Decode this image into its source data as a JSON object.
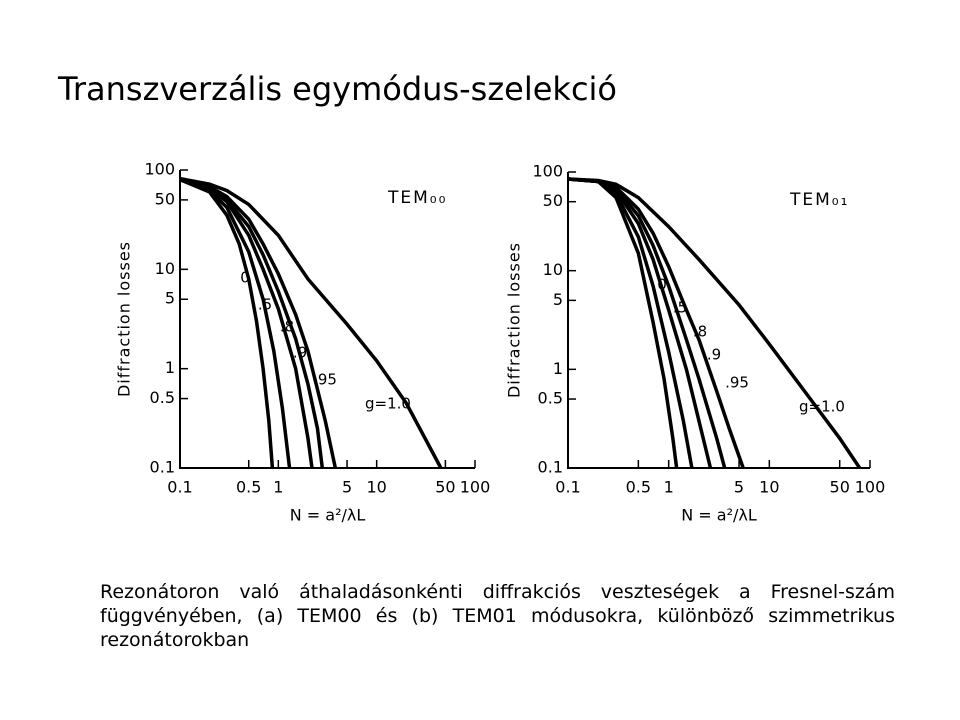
{
  "title": "Transzverzális egymódus-szelekció",
  "caption": "Rezonátoron való áthaladásonkénti diffrakciós veszteségek a Fresnel-szám függvényében, (a) TEM00 és (b) TEM01 módusokra, különböző szimmetrikus rezonátorokban",
  "chart_data": [
    {
      "type": "line",
      "annotation": "TEM₀₀",
      "xlabel": "N = a²/λL",
      "ylabel": "Diffraction losses",
      "xscale": "log",
      "yscale": "log",
      "xlim": [
        0.1,
        100
      ],
      "ylim": [
        0.1,
        100
      ],
      "xticks": [
        0.1,
        0.5,
        1,
        5,
        10,
        50,
        100
      ],
      "yticks": [
        0.1,
        0.5,
        1,
        5,
        10,
        50,
        100
      ],
      "series": [
        {
          "name": "0",
          "color": "#000000",
          "x": [
            0.1,
            0.2,
            0.3,
            0.4,
            0.5,
            0.6,
            0.7,
            0.8,
            0.87
          ],
          "values": [
            80,
            60,
            35,
            18,
            8,
            3,
            1,
            0.3,
            0.1
          ]
        },
        {
          "name": ".5",
          "color": "#000000",
          "x": [
            0.1,
            0.2,
            0.3,
            0.5,
            0.7,
            0.9,
            1.1,
            1.3
          ],
          "values": [
            80,
            62,
            42,
            15,
            5,
            1.5,
            0.4,
            0.1
          ]
        },
        {
          "name": ".8",
          "color": "#000000",
          "x": [
            0.1,
            0.2,
            0.3,
            0.5,
            0.7,
            1,
            1.5,
            2,
            2.2
          ],
          "values": [
            80,
            65,
            48,
            22,
            10,
            4,
            1,
            0.2,
            0.1
          ]
        },
        {
          "name": ".9",
          "color": "#000000",
          "x": [
            0.1,
            0.2,
            0.3,
            0.5,
            0.7,
            1,
            1.5,
            2,
            2.5,
            2.8
          ],
          "values": [
            80,
            66,
            50,
            27,
            14,
            6,
            2,
            0.7,
            0.25,
            0.1
          ]
        },
        {
          "name": ".95",
          "color": "#000000",
          "x": [
            0.1,
            0.2,
            0.3,
            0.5,
            0.7,
            1,
            1.5,
            2,
            3,
            3.8
          ],
          "values": [
            80,
            68,
            54,
            32,
            18,
            9,
            3.5,
            1.5,
            0.3,
            0.1
          ]
        },
        {
          "name": "g=1.0",
          "color": "#000000",
          "x": [
            0.1,
            0.2,
            0.3,
            0.5,
            1,
            2,
            5,
            10,
            20,
            45
          ],
          "values": [
            82,
            72,
            62,
            45,
            22,
            8,
            2.8,
            1.2,
            0.45,
            0.1
          ]
        }
      ]
    },
    {
      "type": "line",
      "annotation": "TEM₀₁",
      "xlabel": "N = a²/λL",
      "ylabel": "Diffraction losses",
      "xscale": "log",
      "yscale": "log",
      "xlim": [
        0.1,
        100
      ],
      "ylim": [
        0.1,
        100
      ],
      "xticks": [
        0.1,
        0.5,
        1,
        5,
        10,
        50,
        100
      ],
      "yticks": [
        0.1,
        0.5,
        1,
        5,
        10,
        50,
        100
      ],
      "series": [
        {
          "name": "0",
          "color": "#000000",
          "x": [
            0.1,
            0.2,
            0.3,
            0.5,
            0.7,
            0.9,
            1.1,
            1.2
          ],
          "values": [
            85,
            80,
            55,
            15,
            3,
            0.8,
            0.2,
            0.1
          ]
        },
        {
          "name": ".5",
          "color": "#000000",
          "x": [
            0.1,
            0.2,
            0.3,
            0.5,
            0.7,
            1,
            1.4,
            1.7
          ],
          "values": [
            85,
            80,
            60,
            22,
            7,
            1.5,
            0.3,
            0.1
          ]
        },
        {
          "name": ".8",
          "color": "#000000",
          "x": [
            0.1,
            0.2,
            0.3,
            0.5,
            0.7,
            1,
            1.5,
            2,
            2.6
          ],
          "values": [
            85,
            80,
            65,
            30,
            13,
            4,
            1,
            0.3,
            0.1
          ]
        },
        {
          "name": ".9",
          "color": "#000000",
          "x": [
            0.1,
            0.2,
            0.3,
            0.5,
            0.7,
            1,
            1.5,
            2,
            3,
            3.6
          ],
          "values": [
            85,
            80,
            68,
            36,
            18,
            7,
            2,
            0.8,
            0.2,
            0.1
          ]
        },
        {
          "name": ".95",
          "color": "#000000",
          "x": [
            0.1,
            0.2,
            0.3,
            0.5,
            0.7,
            1,
            1.5,
            2,
            3,
            4,
            5.5
          ],
          "values": [
            85,
            81,
            70,
            42,
            24,
            11,
            4,
            2,
            0.6,
            0.25,
            0.1
          ]
        },
        {
          "name": "g=1.0",
          "color": "#000000",
          "x": [
            0.1,
            0.2,
            0.3,
            0.5,
            1,
            2,
            5,
            10,
            20,
            50,
            79
          ],
          "values": [
            85,
            82,
            75,
            55,
            28,
            13,
            4.5,
            1.8,
            0.7,
            0.2,
            0.1
          ]
        }
      ]
    }
  ]
}
